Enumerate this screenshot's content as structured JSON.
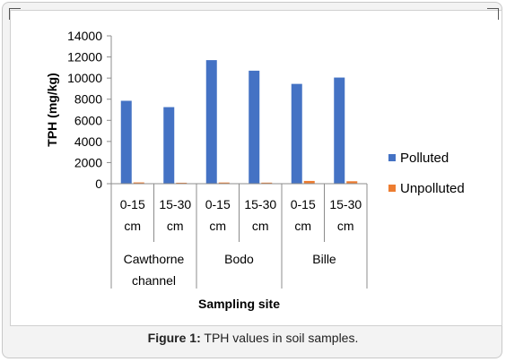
{
  "figure": {
    "label": "Figure 1:",
    "caption": "TPH values in soil samples."
  },
  "chart_data": {
    "type": "bar",
    "title": "",
    "ylabel": "TPH (mg/kg)",
    "xlabel": "Sampling site",
    "ylim": [
      0,
      14000
    ],
    "yticks": [
      0,
      2000,
      4000,
      6000,
      8000,
      10000,
      12000,
      14000
    ],
    "grid": false,
    "legend_position": "right",
    "categories": [
      {
        "label_lines": [
          "0-15",
          "cm"
        ],
        "group": 0
      },
      {
        "label_lines": [
          "15-30",
          "cm"
        ],
        "group": 0
      },
      {
        "label_lines": [
          "0-15",
          "cm"
        ],
        "group": 1
      },
      {
        "label_lines": [
          "15-30",
          "cm"
        ],
        "group": 1
      },
      {
        "label_lines": [
          "0-15",
          "cm"
        ],
        "group": 2
      },
      {
        "label_lines": [
          "15-30",
          "cm"
        ],
        "group": 2
      }
    ],
    "groups": [
      {
        "label_lines": [
          "Cawthorne",
          "channel"
        ]
      },
      {
        "label_lines": [
          "Bodo"
        ]
      },
      {
        "label_lines": [
          "Bille"
        ]
      }
    ],
    "series": [
      {
        "name": "Polluted",
        "color": "#4472c4",
        "values": [
          7850,
          7250,
          11700,
          10700,
          9450,
          10050
        ]
      },
      {
        "name": "Unpolluted",
        "color": "#ed7d31",
        "values": [
          120,
          90,
          110,
          100,
          260,
          230
        ]
      }
    ]
  }
}
